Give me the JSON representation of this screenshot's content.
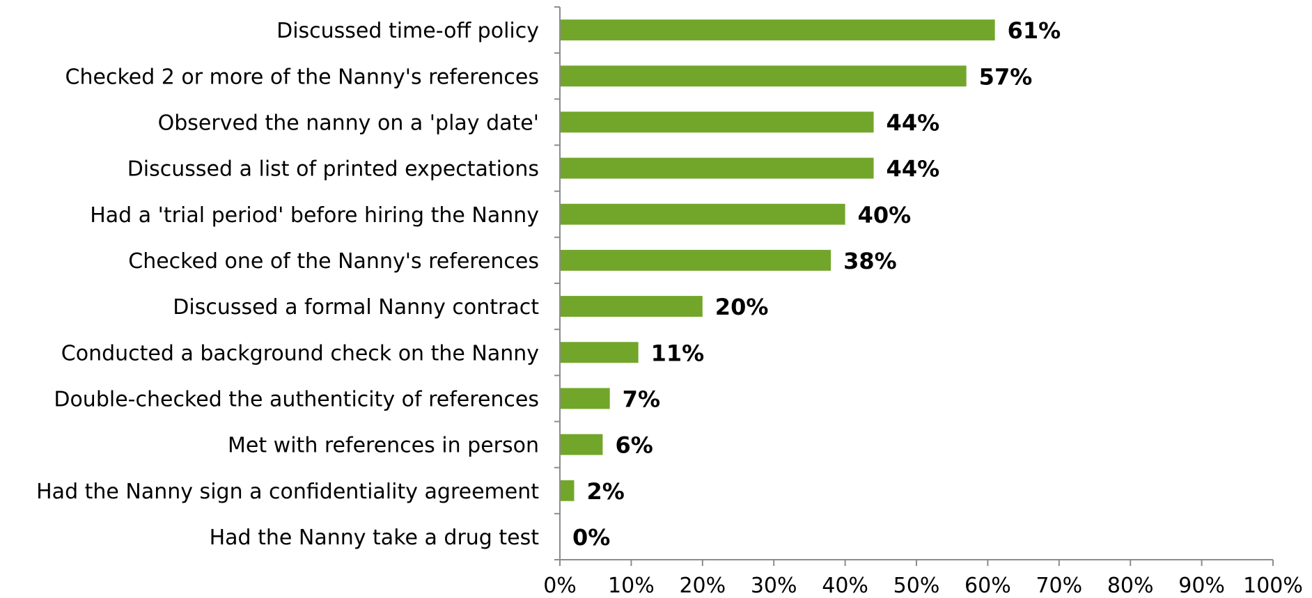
{
  "chart_data": {
    "type": "bar",
    "orientation": "horizontal",
    "categories": [
      "Discussed time-off policy",
      "Checked 2 or more of the Nanny's references",
      "Observed the nanny on a 'play date' ",
      "Discussed a list of printed expectations",
      "Had a 'trial period' before hiring the Nanny",
      "Checked one of the Nanny's references",
      "Discussed a formal Nanny contract",
      "Conducted a background check on the Nanny",
      "Double-checked the authenticity of references",
      "Met with references in person",
      "Had the Nanny sign a confidentiality agreement",
      "Had the Nanny take a drug test"
    ],
    "values": [
      61,
      57,
      44,
      44,
      40,
      38,
      20,
      11,
      7,
      6,
      2,
      0
    ],
    "value_labels": [
      "61%",
      "57%",
      "44%",
      "44%",
      "40%",
      "38%",
      "20%",
      "11%",
      "7%",
      "6%",
      "2%",
      "0%"
    ],
    "xlim": [
      0,
      100
    ],
    "xticks": [
      0,
      10,
      20,
      30,
      40,
      50,
      60,
      70,
      80,
      90,
      100
    ],
    "xtick_labels": [
      "0%",
      "10%",
      "20%",
      "30%",
      "40%",
      "50%",
      "60%",
      "70%",
      "80%",
      "90%",
      "100%"
    ],
    "title": "",
    "xlabel": "",
    "ylabel": "",
    "grid": false,
    "legend": "none",
    "bar_color": "#72a62a",
    "axis_color": "#8c8c8c"
  }
}
